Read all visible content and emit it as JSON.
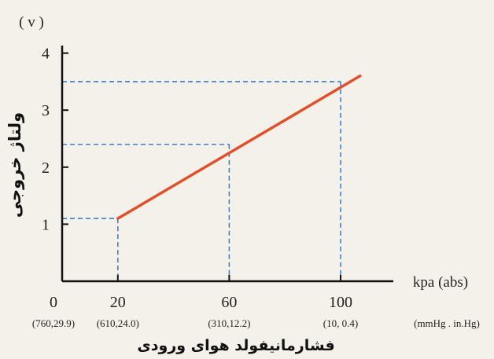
{
  "chart_data": {
    "type": "line",
    "y_unit": "( v )",
    "ylabel": "ولتاژ خروجی",
    "xlabel": "فشارمانیفولد هوای ورودی",
    "x_unit": "kpa (abs)",
    "secondary_unit": "(mmHg . in.Hg)",
    "origin_label": "0",
    "x_ticks": [
      {
        "value": 20,
        "label": "20",
        "sub": "(610,24.0)"
      },
      {
        "value": 60,
        "label": "60",
        "sub": "(310,12.2)"
      },
      {
        "value": 100,
        "label": "100",
        "sub": "(10,   0.4)"
      }
    ],
    "origin_sub": "(760,29.9)",
    "y_ticks": [
      {
        "value": 1,
        "label": "1"
      },
      {
        "value": 2,
        "label": "2"
      },
      {
        "value": 3,
        "label": "3"
      },
      {
        "value": 4,
        "label": "4"
      }
    ],
    "xlim": [
      0,
      110
    ],
    "ylim": [
      0,
      4.3
    ],
    "series": [
      {
        "color": "#e2502b",
        "x": [
          20,
          107
        ],
        "y": [
          1.1,
          3.6
        ]
      }
    ],
    "reference_points": [
      {
        "x": 20,
        "y": 1.1
      },
      {
        "x": 60,
        "y": 2.4
      },
      {
        "x": 100,
        "y": 3.5
      }
    ],
    "grid": false
  }
}
